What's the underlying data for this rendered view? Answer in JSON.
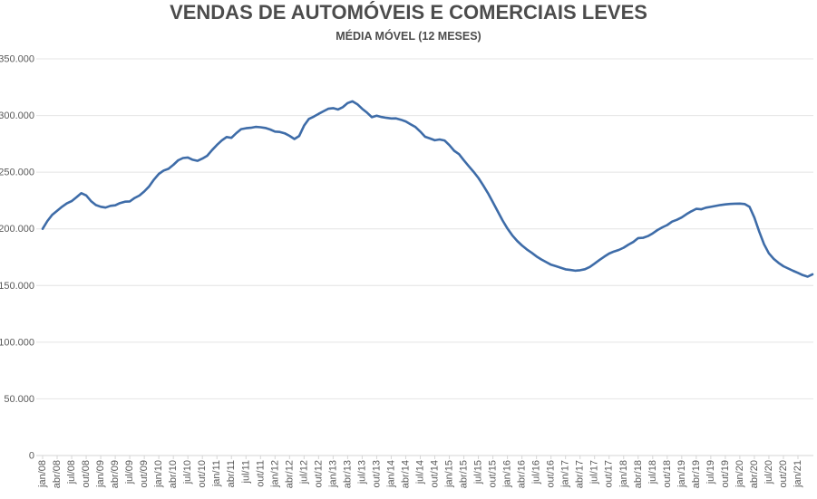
{
  "page": {
    "background": "#ffffff"
  },
  "chart_data": {
    "type": "line",
    "title": "VENDAS DE AUTOMÓVEIS E COMERCIAIS LEVES",
    "subtitle": "MÉDIA MÓVEL (12 MESES)",
    "legend": "none",
    "grid": "horizontal",
    "ylim": [
      0,
      350000
    ],
    "y_tick_step": 50000,
    "y_tick_values": [
      0,
      50000,
      100000,
      150000,
      200000,
      250000,
      300000,
      350000
    ],
    "y_tick_labels": [
      "0",
      "50.000",
      "100.000",
      "150.000",
      "200.000",
      "250.000",
      "300.000",
      "350.000"
    ],
    "x_tick_every": 3,
    "x_tick_max_index": 156,
    "x": [
      "jan/08",
      "fev/08",
      "mar/08",
      "abr/08",
      "mai/08",
      "jun/08",
      "jul/08",
      "ago/08",
      "set/08",
      "out/08",
      "nov/08",
      "dez/08",
      "jan/09",
      "fev/09",
      "mar/09",
      "abr/09",
      "mai/09",
      "jun/09",
      "jul/09",
      "ago/09",
      "set/09",
      "out/09",
      "nov/09",
      "dez/09",
      "jan/10",
      "fev/10",
      "mar/10",
      "abr/10",
      "mai/10",
      "jun/10",
      "jul/10",
      "ago/10",
      "set/10",
      "out/10",
      "nov/10",
      "dez/10",
      "jan/11",
      "fev/11",
      "mar/11",
      "abr/11",
      "mai/11",
      "jun/11",
      "jul/11",
      "ago/11",
      "set/11",
      "out/11",
      "nov/11",
      "dez/11",
      "jan/12",
      "fev/12",
      "mar/12",
      "abr/12",
      "mai/12",
      "jun/12",
      "jul/12",
      "ago/12",
      "set/12",
      "out/12",
      "nov/12",
      "dez/12",
      "jan/13",
      "fev/13",
      "mar/13",
      "abr/13",
      "mai/13",
      "jun/13",
      "jul/13",
      "ago/13",
      "set/13",
      "out/13",
      "nov/13",
      "dez/13",
      "jan/14",
      "fev/14",
      "mar/14",
      "abr/14",
      "mai/14",
      "jun/14",
      "jul/14",
      "ago/14",
      "set/14",
      "out/14",
      "nov/14",
      "dez/14",
      "jan/15",
      "fev/15",
      "mar/15",
      "abr/15",
      "mai/15",
      "jun/15",
      "jul/15",
      "ago/15",
      "set/15",
      "out/15",
      "nov/15",
      "dez/15",
      "jan/16",
      "fev/16",
      "mar/16",
      "abr/16",
      "mai/16",
      "jun/16",
      "jul/16",
      "ago/16",
      "set/16",
      "out/16",
      "nov/16",
      "dez/16",
      "jan/17",
      "fev/17",
      "mar/17",
      "abr/17",
      "mai/17",
      "jun/17",
      "jul/17",
      "ago/17",
      "set/17",
      "out/17",
      "nov/17",
      "dez/17",
      "jan/18",
      "fev/18",
      "mar/18",
      "abr/18",
      "mai/18",
      "jun/18",
      "jul/18",
      "ago/18",
      "set/18",
      "out/18",
      "nov/18",
      "dez/18",
      "jan/19",
      "fev/19",
      "mar/19",
      "abr/19",
      "mai/19",
      "jun/19",
      "jul/19",
      "ago/19",
      "set/19",
      "out/19",
      "nov/19",
      "dez/19",
      "jan/20",
      "fev/20",
      "mar/20",
      "abr/20",
      "mai/20",
      "jun/20",
      "jul/20",
      "ago/20",
      "set/20",
      "out/20",
      "nov/20",
      "dez/20",
      "jan/21",
      "fev/21",
      "mar/21",
      "abr/21"
    ],
    "series": [
      {
        "values": [
          200000,
          207000,
          212500,
          216000,
          219500,
          222500,
          224500,
          228000,
          231500,
          229500,
          224500,
          221000,
          219500,
          218800,
          220300,
          220800,
          222800,
          224000,
          224200,
          227300,
          229400,
          233000,
          237500,
          243500,
          248500,
          251500,
          253000,
          256500,
          260500,
          262500,
          263000,
          261000,
          260000,
          262000,
          264500,
          269500,
          274000,
          278000,
          281000,
          280300,
          284500,
          288000,
          288800,
          289200,
          290000,
          289700,
          289000,
          287700,
          285800,
          285500,
          284300,
          282100,
          279300,
          282000,
          291000,
          297000,
          299000,
          301500,
          303700,
          306000,
          306500,
          305300,
          307400,
          311000,
          312500,
          310000,
          306000,
          302500,
          298500,
          299800,
          298700,
          298000,
          297400,
          297500,
          296300,
          294800,
          292300,
          289800,
          285800,
          281300,
          279800,
          278200,
          278900,
          278000,
          273900,
          268900,
          265900,
          260600,
          255400,
          250400,
          244900,
          238400,
          231400,
          223400,
          215400,
          207400,
          200300,
          194300,
          189400,
          185400,
          181900,
          178900,
          175700,
          173000,
          170700,
          168400,
          167100,
          165700,
          164300,
          163700,
          163100,
          163500,
          164400,
          166400,
          169300,
          172500,
          175500,
          178200,
          180000,
          181400,
          183400,
          186100,
          188400,
          191900,
          192100,
          193600,
          196000,
          199000,
          201400,
          203400,
          206400,
          208000,
          210100,
          213000,
          215500,
          217700,
          217300,
          218700,
          219400,
          220200,
          221000,
          221600,
          222000,
          222200,
          222300,
          221900,
          219400,
          210000,
          197500,
          186400,
          178400,
          173500,
          170000,
          167000,
          165000,
          163000,
          161200,
          159200,
          157800,
          159900
        ]
      }
    ]
  },
  "style": {
    "line_color": "#3e6ca8",
    "grid_color": "#e4e4e4",
    "zero_line_color": "#d5d5d5",
    "tick_color": "#d5d5d5",
    "axis_label_color": "#595959",
    "title_color": "#4c4c4c"
  }
}
